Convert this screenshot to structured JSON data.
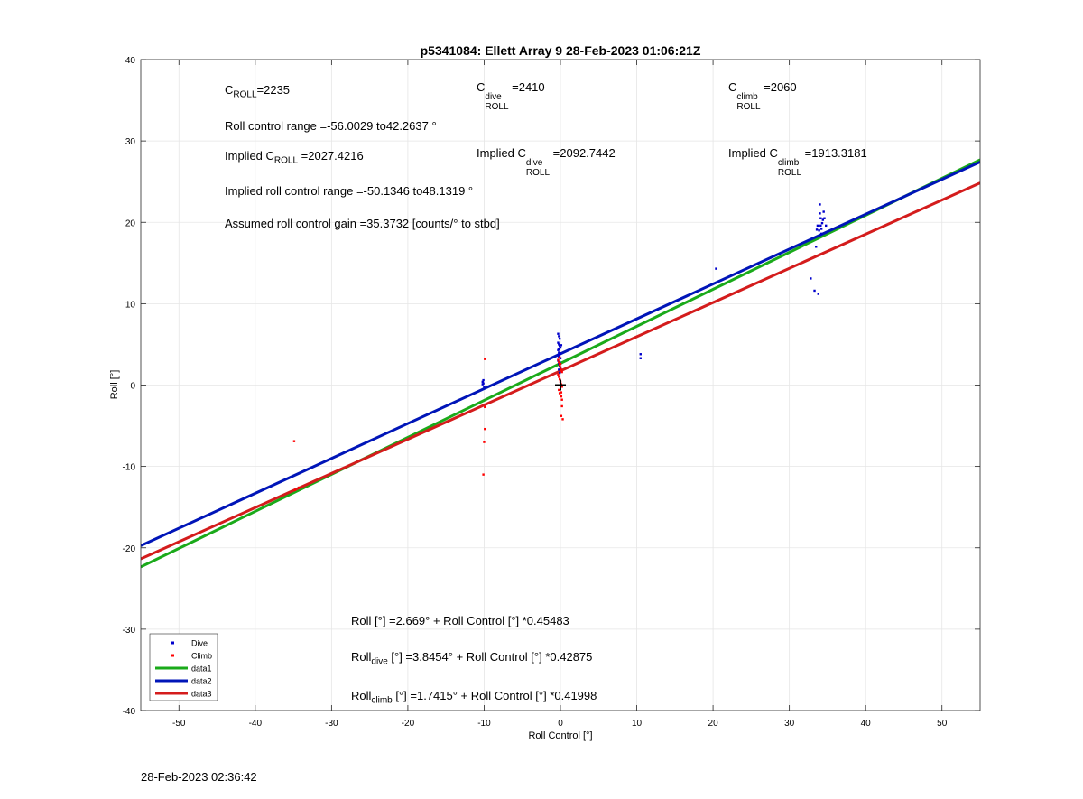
{
  "chart_data": {
    "type": "scatter",
    "title": "p5341084: Ellett Array 9 28-Feb-2023 01:06:21Z",
    "xlabel": "Roll Control [°]",
    "ylabel": "Roll [°]",
    "xlim": [
      -55,
      55
    ],
    "ylim": [
      -40,
      40
    ],
    "xticks": [
      -50,
      -40,
      -30,
      -20,
      -10,
      0,
      10,
      20,
      30,
      40,
      50
    ],
    "yticks": [
      -40,
      -30,
      -20,
      -10,
      0,
      10,
      20,
      30,
      40
    ],
    "grid": true,
    "legend_position": "bottom-left",
    "legend": [
      "Dive",
      "Climb",
      "data1",
      "data2",
      "data3"
    ],
    "colors": {
      "dive": "#0000cc",
      "climb": "#ff0000",
      "data1": "#1aaa1a",
      "data2": "#0015b8",
      "data3": "#d41c1c"
    },
    "series": [
      {
        "name": "Dive",
        "kind": "points",
        "x": [
          -10.2,
          -10.2,
          -10.1,
          -10.0,
          -10.1,
          -0.3,
          -0.2,
          -0.1,
          -0.3,
          -0.2,
          -0.1,
          0.0,
          -0.3,
          -0.2,
          -0.1,
          -0.2,
          0.0,
          -0.3,
          -0.1,
          -0.2,
          -0.3,
          -0.2,
          0.1,
          -0.1,
          0.0,
          -0.2,
          -0.1,
          0.0,
          10.5,
          10.5,
          20.4,
          32.8,
          33.5,
          33.6,
          33.7,
          33.9,
          34.0,
          34.0,
          34.1,
          34.1,
          34.2,
          34.2,
          34.3,
          34.4,
          34.5,
          34.6,
          34.8,
          33.3,
          33.8
        ],
        "y": [
          0.1,
          0.4,
          0.6,
          -0.2,
          0.2,
          6.3,
          6.0,
          5.7,
          5.2,
          5.0,
          4.8,
          4.6,
          4.3,
          4.0,
          3.8,
          3.5,
          3.3,
          3.0,
          2.8,
          4.4,
          3.7,
          2.6,
          4.9,
          2.3,
          2.1,
          1.9,
          1.5,
          3.9,
          3.3,
          3.8,
          14.3,
          13.1,
          17.0,
          19.1,
          19.6,
          19.0,
          22.2,
          21.1,
          20.5,
          19.6,
          19.2,
          18.6,
          19.9,
          20.3,
          21.3,
          20.5,
          19.6,
          11.6,
          11.2
        ]
      },
      {
        "name": "Climb",
        "kind": "points",
        "x": [
          -34.9,
          -34.3,
          -34.8,
          -9.9,
          -9.9,
          -9.9,
          -10.0,
          -10.1,
          -0.3,
          -0.2,
          -0.1,
          0.0,
          0.1,
          0.2,
          -0.3,
          -0.2,
          -0.1,
          0.0,
          0.1,
          0.2,
          -0.2,
          -0.1,
          0.1,
          0.2,
          0.2,
          0.1,
          0.3,
          0.1,
          -0.1,
          0.0
        ],
        "y": [
          -6.9,
          -12.6,
          -12.9,
          3.2,
          -2.7,
          -5.4,
          -7.0,
          -11.0,
          3.1,
          2.8,
          2.5,
          2.2,
          1.9,
          1.6,
          1.3,
          1.0,
          0.7,
          0.4,
          0.1,
          -0.2,
          -0.6,
          -1.0,
          -1.4,
          -1.8,
          -2.6,
          -3.8,
          -4.2,
          -0.9,
          3.4,
          2.6
        ]
      },
      {
        "name": "data1",
        "kind": "line",
        "intercept": 2.669,
        "slope": 0.45483
      },
      {
        "name": "data2",
        "kind": "line",
        "intercept": 3.8454,
        "slope": 0.42875
      },
      {
        "name": "data3",
        "kind": "line",
        "intercept": 1.7415,
        "slope": 0.41998
      }
    ],
    "origin_marker": {
      "x": 0,
      "y": 0
    }
  },
  "annotations": {
    "c_roll": {
      "prefix": "C",
      "sub": "ROLL",
      "value": "=2235"
    },
    "c_roll_dive": {
      "prefix": "C",
      "sup": "dive",
      "sub": "ROLL",
      "value": " =2410"
    },
    "c_roll_climb": {
      "prefix": "C",
      "sup": "climb",
      "sub": "ROLL",
      "value": " =2060"
    },
    "roll_range": "Roll control range =-56.0029 to42.2637 °",
    "implied_c_roll": {
      "prefix": "Implied C",
      "sub": "ROLL",
      "value": " =2027.4216"
    },
    "implied_c_roll_dive": {
      "prefix": "Implied C",
      "sup": "dive",
      "sub": "ROLL",
      "value": " =2092.7442"
    },
    "implied_c_roll_climb": {
      "prefix": "Implied C",
      "sup": "climb",
      "sub": "ROLL",
      "value": " =1913.3181"
    },
    "implied_range": "Implied roll control range =-50.1346 to48.1319 °",
    "gain": "Assumed roll control gain =35.3732 [counts/° to stbd]",
    "eq_all": "Roll [°] =2.669° + Roll Control [°] *0.45483",
    "eq_dive": {
      "prefix": "Roll",
      "sub": "dive",
      "rest": " [°] =3.8454° + Roll Control [°] *0.42875"
    },
    "eq_climb": {
      "prefix": "Roll",
      "sub": "climb",
      "rest": " [°] =1.7415° + Roll Control [°] *0.41998"
    }
  },
  "footer_timestamp": "28-Feb-2023 02:36:42"
}
